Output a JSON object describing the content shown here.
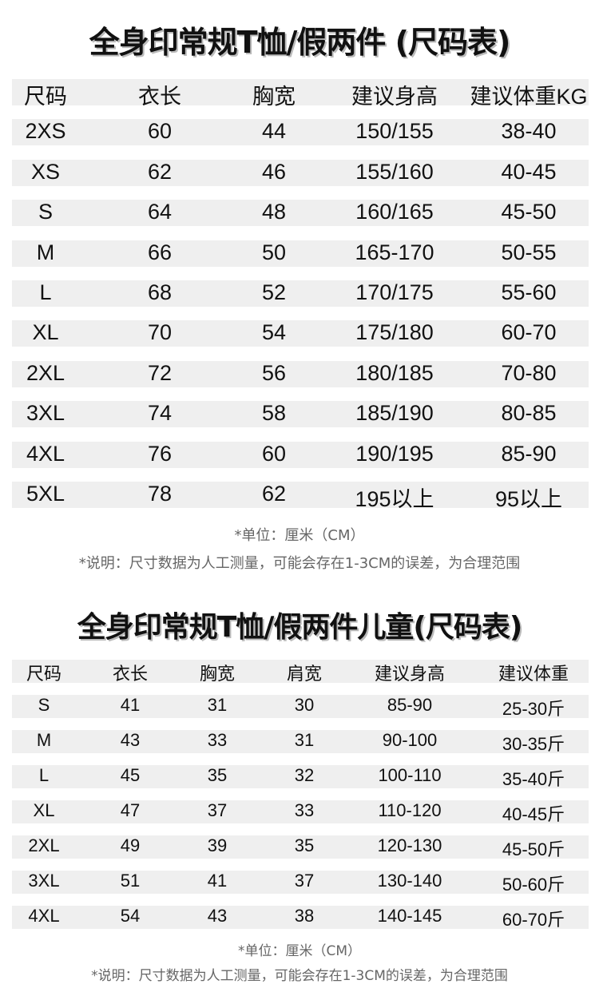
{
  "adult": {
    "title": "全身印常规T恤/假两件 (尺码表)",
    "headers": [
      "尺码",
      "衣长",
      "胸宽",
      "建议身高",
      "建议体重KG"
    ],
    "rows": [
      [
        "2XS",
        "60",
        "44",
        "150/155",
        "38-40"
      ],
      [
        "XS",
        "62",
        "46",
        "155/160",
        "40-45"
      ],
      [
        "S",
        "64",
        "48",
        "160/165",
        "45-50"
      ],
      [
        "M",
        "66",
        "50",
        "165-170",
        "50-55"
      ],
      [
        "L",
        "68",
        "52",
        "170/175",
        "55-60"
      ],
      [
        "XL",
        "70",
        "54",
        "175/180",
        "60-70"
      ],
      [
        "2XL",
        "72",
        "56",
        "180/185",
        "70-80"
      ],
      [
        "3XL",
        "74",
        "58",
        "185/190",
        "80-85"
      ],
      [
        "4XL",
        "76",
        "60",
        "190/195",
        "85-90"
      ],
      [
        "5XL",
        "78",
        "62",
        "195以上",
        "95以上"
      ]
    ],
    "unit_note": "*单位：厘米（CM）",
    "desc_note": "*说明：尺寸数据为人工测量，可能会存在1-3CM的误差，为合理范围"
  },
  "kids": {
    "title": "全身印常规T恤/假两件儿童(尺码表)",
    "headers": [
      "尺码",
      "衣长",
      "胸宽",
      "肩宽",
      "建议身高",
      "建议体重"
    ],
    "rows": [
      [
        "S",
        "41",
        "31",
        "30",
        "85-90",
        "25-30斤"
      ],
      [
        "M",
        "43",
        "33",
        "31",
        "90-100",
        "30-35斤"
      ],
      [
        "L",
        "45",
        "35",
        "32",
        "100-110",
        "35-40斤"
      ],
      [
        "XL",
        "47",
        "37",
        "33",
        "110-120",
        "40-45斤"
      ],
      [
        "2XL",
        "49",
        "39",
        "35",
        "120-130",
        "45-50斤"
      ],
      [
        "3XL",
        "51",
        "41",
        "37",
        "130-140",
        "50-60斤"
      ],
      [
        "4XL",
        "54",
        "43",
        "38",
        "140-145",
        "60-70斤"
      ]
    ],
    "unit_note": "*单位：厘米（CM）",
    "desc_note": "*说明：尺寸数据为人工测量，可能会存在1-3CM的误差，为合理范围"
  }
}
